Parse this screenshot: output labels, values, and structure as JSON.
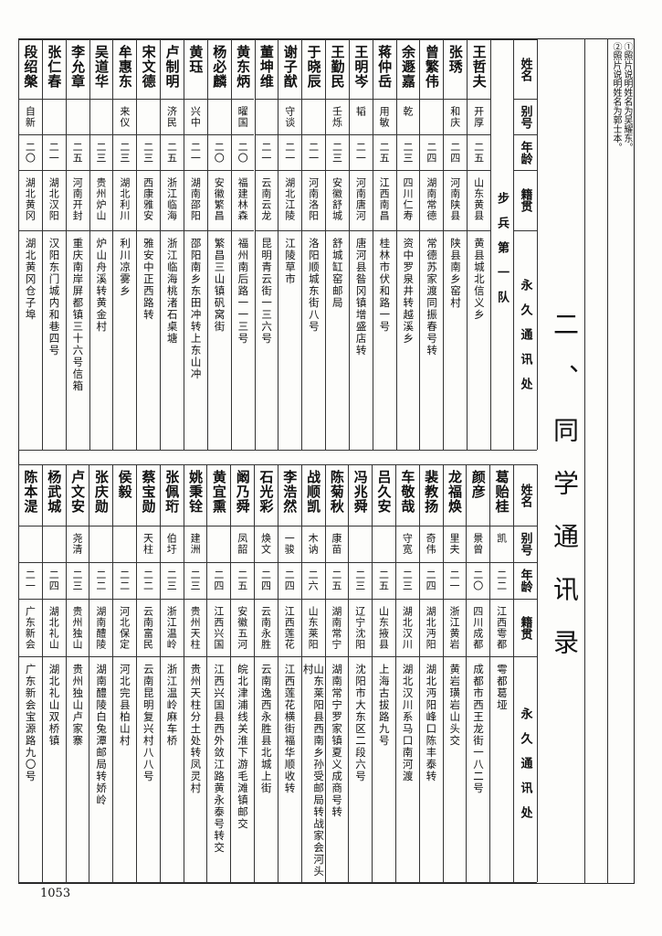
{
  "notes": [
    "①照片说明姓名为吴耀东。",
    "②照片说明姓名为郭士本。"
  ],
  "title": "二、同学通讯录",
  "headers": {
    "name": "姓名",
    "alias": "别号",
    "age": "年龄",
    "origin": "籍贯",
    "address": "永久通讯处"
  },
  "top_table": {
    "section": "步兵第一队",
    "rows": [
      {
        "name": "王哲夫",
        "alias": "开厚",
        "age": "二五",
        "origin": "山东黄县",
        "address": "黄县城北信义乡"
      },
      {
        "name": "张琇",
        "alias": "和庆",
        "age": "二四",
        "origin": "河南陕县",
        "address": "陕县南乡窑村"
      },
      {
        "name": "曾繁伟",
        "alias": "",
        "age": "二四",
        "origin": "湖南常德",
        "address": "常德苏家渡同振春号转"
      },
      {
        "name": "余遯嘉",
        "alias": "乾",
        "age": "二三",
        "origin": "四川仁寿",
        "address": "资中罗泉井转越溪乡"
      },
      {
        "name": "蒋仲岳",
        "alias": "用敏",
        "age": "二五",
        "origin": "江西南昌",
        "address": "桂林市伏和路一号"
      },
      {
        "name": "王明岑",
        "alias": "韬",
        "age": "二一",
        "origin": "河南唐河",
        "address": "唐河县昝冈镇增盛店转"
      },
      {
        "name": "王勤民",
        "alias": "壬烁",
        "age": "二三",
        "origin": "安徽舒城",
        "address": "舒城缸窑邮局"
      },
      {
        "name": "于晓辰",
        "alias": "",
        "age": "二一",
        "origin": "河南洛阳",
        "address": "洛阳顺城东街八号"
      },
      {
        "name": "谢子猷",
        "alias": "守谈",
        "age": "二一",
        "origin": "湖北江陵",
        "address": "江陵草市"
      },
      {
        "name": "董坤维",
        "alias": "",
        "age": "二一",
        "origin": "云南云龙",
        "address": "昆明青云街一三六号"
      },
      {
        "name": "黄东炳",
        "alias": "曜国",
        "age": "二〇",
        "origin": "福建林森",
        "address": "福州南后路一一三号"
      },
      {
        "name": "杨必麟",
        "alias": "",
        "age": "二〇",
        "origin": "安徽繁昌",
        "address": "繁昌三山镇矾窝街"
      },
      {
        "name": "黄珏",
        "alias": "兴中",
        "age": "二一",
        "origin": "湖南邵阳",
        "address": "邵阳南乡东田冲转上东山冲"
      },
      {
        "name": "卢制明",
        "alias": "济民",
        "age": "二五",
        "origin": "浙江临海",
        "address": "浙江临海桃渚石桌塘"
      },
      {
        "name": "宋文德",
        "alias": "",
        "age": "二三",
        "origin": "西康雅安",
        "address": "雅安中正西路转"
      },
      {
        "name": "牟惠东",
        "alias": "来仪",
        "age": "二三",
        "origin": "湖北利川",
        "address": "利川凉雾乡"
      },
      {
        "name": "吴道华",
        "alias": "",
        "age": "二三",
        "origin": "贵州炉山",
        "address": "炉山舟溪转黄金村"
      },
      {
        "name": "李允章",
        "alias": "",
        "age": "二五",
        "origin": "河南开封",
        "address": "重庆南岸屏都镇三十六号信箱"
      },
      {
        "name": "张仁春",
        "alias": "",
        "age": "二一",
        "origin": "湖北汉阳",
        "address": "汉阳东门城内和巷四号"
      },
      {
        "name": "段绍槃",
        "alias": "自新",
        "age": "二〇",
        "origin": "湖北黄冈",
        "address": "湖北黄冈仓子埠"
      }
    ]
  },
  "bottom_table": {
    "rows": [
      {
        "name": "葛贻桂",
        "alias": "凯",
        "age": "二二",
        "origin": "江西雩都",
        "address": "雩都葛垭"
      },
      {
        "name": "颜彦",
        "alias": "景曾",
        "age": "二〇",
        "origin": "四川成都",
        "address": "成都市西王龙街一八二号"
      },
      {
        "name": "龙福焕",
        "alias": "里夫",
        "age": "二一",
        "origin": "浙江黄岩",
        "address": "黄岩璜岩山头交"
      },
      {
        "name": "裴教扬",
        "alias": "奇伟",
        "age": "二四",
        "origin": "湖北沔阳",
        "address": "湖北沔阳峰口陈丰泰转"
      },
      {
        "name": "车敬哉",
        "alias": "守宽",
        "age": "二三",
        "origin": "湖北汉川",
        "address": "湖北汉川系马口南河渡"
      },
      {
        "name": "吕久安",
        "alias": "",
        "age": "二五",
        "origin": "山东掖县",
        "address": "上海古拔路九号"
      },
      {
        "name": "冯兆舜",
        "alias": "",
        "age": "二三",
        "origin": "辽宁沈阳",
        "address": "沈阳市大东区二段六号"
      },
      {
        "name": "陈菊秋",
        "alias": "康苗",
        "age": "二五",
        "origin": "湖南常宁",
        "address": "湖南常宁罗家镇夏义成商号转"
      },
      {
        "name": "战顺凯",
        "alias": "木讷",
        "age": "二六",
        "origin": "山东莱阳",
        "address": "山东莱阳县西南乡孙受邮局转战家会河头村"
      },
      {
        "name": "李浩然",
        "alias": "一骏",
        "age": "二四",
        "origin": "江西莲花",
        "address": "江西莲花横街福华顺收转"
      },
      {
        "name": "石光彩",
        "alias": "焕文",
        "age": "二四",
        "origin": "云南永胜",
        "address": "云南逸西永胜县北城上街"
      },
      {
        "name": "阚乃舜",
        "alias": "凤韶",
        "age": "二五",
        "origin": "安徽五河",
        "address": "皖北津浦线关淮下游毛滩镇邮交"
      },
      {
        "name": "黄宜熏",
        "alias": "",
        "age": "二四",
        "origin": "江西兴国",
        "address": "江西兴国县西外敛江路黄永泰号转交"
      },
      {
        "name": "姚秉铨",
        "alias": "建洲",
        "age": "二三",
        "origin": "贵州天柱",
        "address": "贵州天柱分土处转凤灵村"
      },
      {
        "name": "张佩珩",
        "alias": "伯圩",
        "age": "二三",
        "origin": "浙江温岭",
        "address": "浙江温岭麻车桥"
      },
      {
        "name": "蔡宝勋",
        "alias": "天柱",
        "age": "二二",
        "origin": "云南富民",
        "address": "云南昆明复兴村八八号"
      },
      {
        "name": "侯毅",
        "alias": "",
        "age": "二二",
        "origin": "河北保定",
        "address": "河北完县柏山村"
      },
      {
        "name": "张庆勋",
        "alias": "",
        "age": "二二",
        "origin": "湖南醴陵",
        "address": "湖南醴陵白兔潭邮局转娇岭"
      },
      {
        "name": "卢文安",
        "alias": "尧清",
        "age": "二三",
        "origin": "贵州独山",
        "address": "贵州独山卢家寨"
      },
      {
        "name": "杨武城",
        "alias": "",
        "age": "二四",
        "origin": "湖北礼山",
        "address": "湖北礼山双桥镇"
      },
      {
        "name": "陈本湜",
        "alias": "",
        "age": "二一",
        "origin": "广东新会",
        "address": "广东新会宝源路九〇号"
      }
    ]
  },
  "page_number": "1053"
}
